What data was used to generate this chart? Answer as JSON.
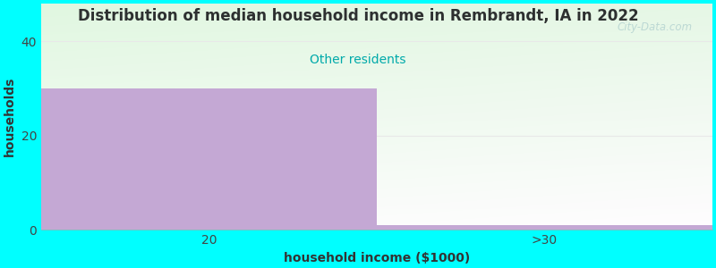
{
  "title": "Distribution of median household income in Rembrandt, IA in 2022",
  "subtitle": "Other residents",
  "subtitle_color": "#00AAAA",
  "title_color": "#2D3030",
  "xlabel": "household income ($1000)",
  "ylabel": "households",
  "categories": [
    "20",
    ">30"
  ],
  "values": [
    30,
    1
  ],
  "bar_color": "#C4A8D4",
  "ylim": [
    0,
    48
  ],
  "yticks": [
    0,
    20,
    40
  ],
  "background_color": "#00FFFF",
  "title_fontsize": 12,
  "subtitle_fontsize": 10,
  "axis_label_fontsize": 10,
  "watermark": "City-Data.com"
}
